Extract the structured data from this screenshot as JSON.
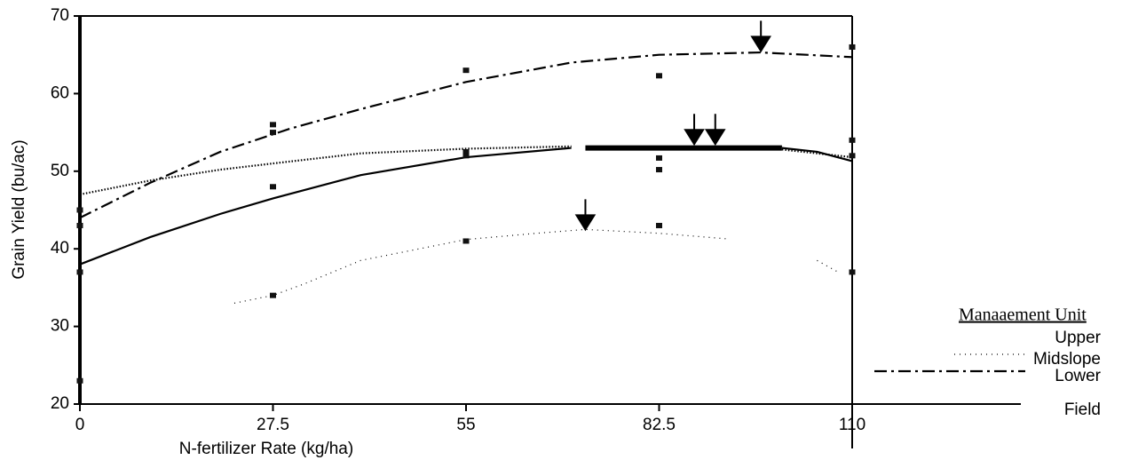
{
  "chart_data": {
    "type": "line",
    "xlabel": "N-fertilizer Rate (kg/ha)",
    "ylabel": "Grain Yield (bu/ac)",
    "xlim": [
      0,
      110
    ],
    "xticks": [
      0,
      27.5,
      55,
      82.5,
      110
    ],
    "ylim": [
      20,
      70
    ],
    "yticks": [
      20,
      30,
      40,
      50,
      60,
      70
    ],
    "legend_title": "Manaaement Unit",
    "series": [
      {
        "name": "Upper",
        "color": "#000000",
        "style": "solid",
        "x": [
          0,
          10,
          20,
          27.5,
          40,
          55,
          70,
          null,
          100,
          105,
          110
        ],
        "values": [
          38,
          41.5,
          44.5,
          46.5,
          49.5,
          51.8,
          53,
          null,
          53,
          52.5,
          51.3
        ]
      },
      {
        "name": "Midslope",
        "color": "#000000",
        "style": "sparse-dot",
        "x": [
          22,
          27.5,
          32,
          40,
          55,
          65,
          72,
          82.5,
          92,
          null,
          105,
          108
        ],
        "values": [
          33,
          34,
          35.5,
          38.5,
          41.2,
          42,
          42.5,
          42,
          41.3,
          null,
          38.5,
          37
        ]
      },
      {
        "name": "Lower",
        "color": "#000000",
        "style": "dash-dot",
        "x": [
          0,
          10,
          20,
          30,
          40,
          55,
          70,
          82.5,
          97,
          110
        ],
        "values": [
          44,
          48.5,
          52.5,
          55.5,
          58,
          61.5,
          64,
          65,
          65.3,
          64.7
        ]
      },
      {
        "name": "Field",
        "color": "#000000",
        "style": "dense-dot",
        "x": [
          0,
          10,
          20,
          27.5,
          40,
          55,
          70,
          null,
          100,
          110
        ],
        "values": [
          47,
          48.8,
          50.2,
          51,
          52.3,
          52.9,
          53.2,
          null,
          52.8,
          51.8
        ]
      },
      {
        "color": "#000000",
        "style": "thick",
        "x": [
          72,
          100
        ],
        "values": [
          53,
          53
        ]
      }
    ],
    "points": {
      "x": [
        0,
        0,
        0,
        0,
        27.5,
        27.5,
        27.5,
        27.5,
        55,
        55,
        55,
        55,
        82.5,
        82.5,
        82.5,
        82.5,
        110,
        110,
        110,
        110
      ],
      "values": [
        45,
        43,
        37,
        23,
        56,
        55,
        48,
        34,
        63,
        52.5,
        52,
        41,
        62.3,
        51.7,
        50.2,
        43,
        66,
        54,
        52,
        37
      ]
    },
    "arrows": {
      "x": [
        97,
        72,
        87.5,
        90.5
      ],
      "values": [
        65.5,
        42.5,
        53.5,
        53.5
      ]
    }
  }
}
